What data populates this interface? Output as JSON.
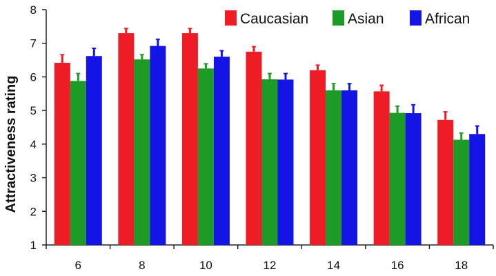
{
  "chart_data": {
    "type": "bar",
    "title": "",
    "xlabel": "",
    "ylabel": "Attractiveness rating",
    "ylim": [
      1,
      8
    ],
    "yticks": [
      "1",
      "2",
      "3",
      "4",
      "5",
      "6",
      "7",
      "8"
    ],
    "categories": [
      "6",
      "8",
      "10",
      "12",
      "14",
      "16",
      "18"
    ],
    "series": [
      {
        "name": "Caucasian",
        "color": "#ee1c25",
        "values": [
          6.42,
          7.3,
          7.3,
          6.75,
          6.2,
          5.57,
          4.72
        ],
        "errors": [
          0.24,
          0.14,
          0.14,
          0.15,
          0.15,
          0.18,
          0.24
        ]
      },
      {
        "name": "Asian",
        "color": "#1e9a26",
        "values": [
          5.88,
          6.52,
          6.25,
          5.93,
          5.6,
          4.93,
          4.13
        ],
        "errors": [
          0.22,
          0.14,
          0.14,
          0.17,
          0.2,
          0.2,
          0.2
        ]
      },
      {
        "name": "African",
        "color": "#1414e6",
        "values": [
          6.62,
          6.92,
          6.6,
          5.92,
          5.6,
          4.92,
          4.3
        ],
        "errors": [
          0.23,
          0.2,
          0.18,
          0.18,
          0.2,
          0.25,
          0.24
        ]
      }
    ],
    "grid": false,
    "legend": "top-right"
  }
}
